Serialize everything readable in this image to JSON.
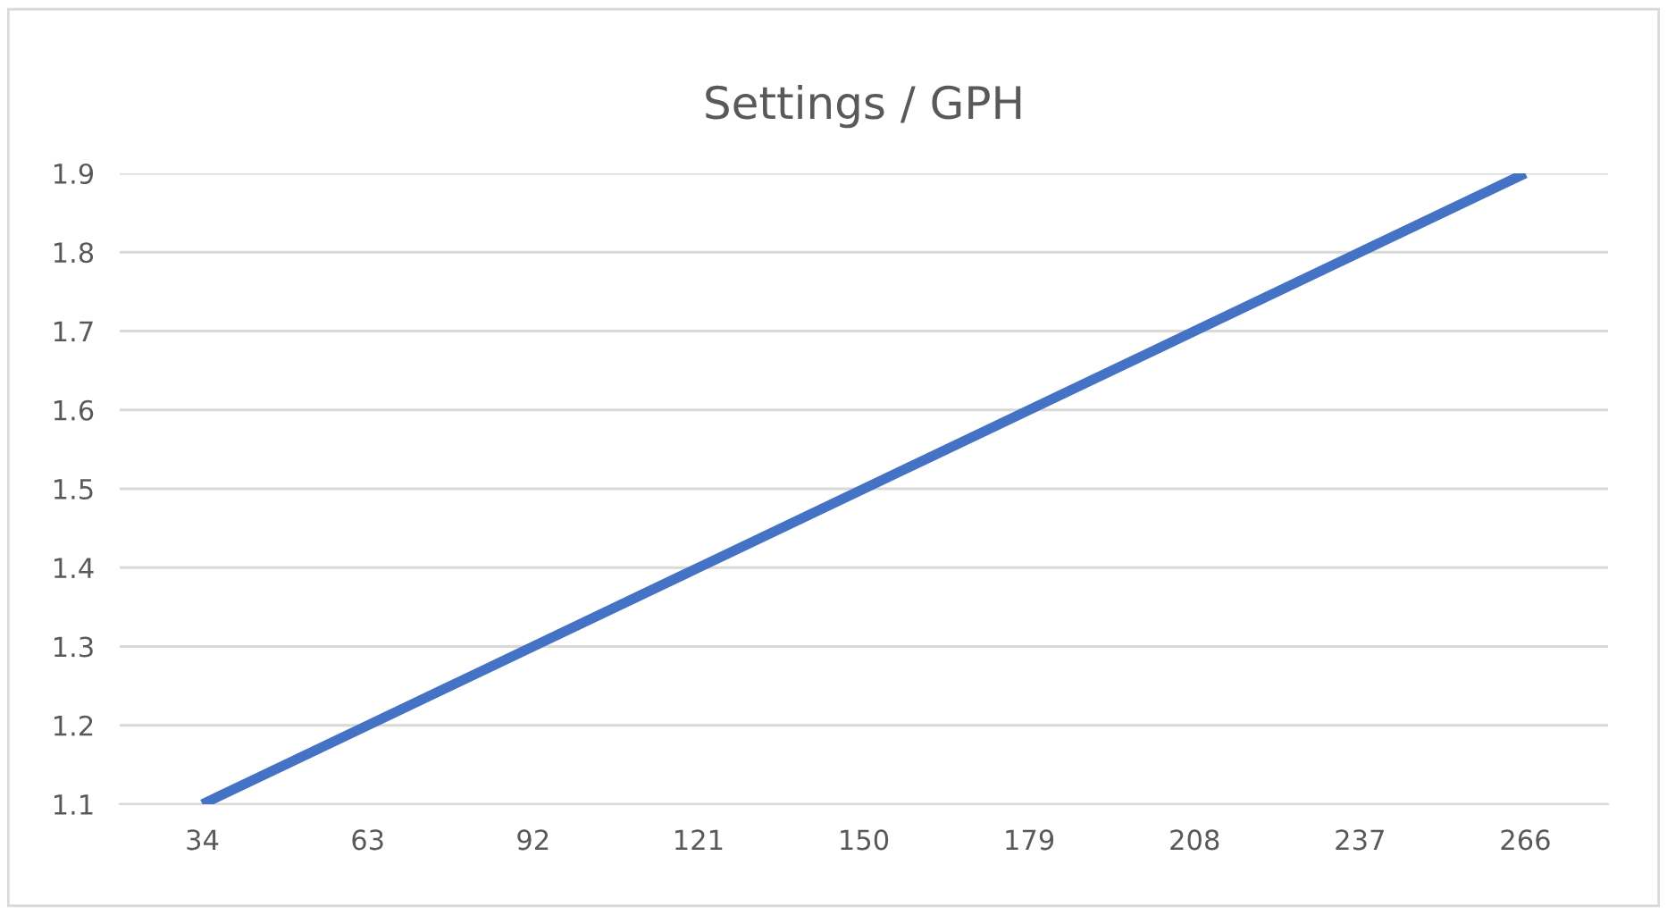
{
  "chart_data": {
    "type": "line",
    "title": "Settings / GPH",
    "categories": [
      "34",
      "63",
      "92",
      "121",
      "150",
      "179",
      "208",
      "237",
      "266"
    ],
    "series": [
      {
        "color": "#4472c4",
        "values": [
          1.1,
          1.2,
          1.3,
          1.4,
          1.5,
          1.6,
          1.7,
          1.8,
          1.9
        ]
      }
    ],
    "ylim": [
      1.1,
      1.9
    ],
    "yticks": [
      1.1,
      1.2,
      1.3,
      1.4,
      1.5,
      1.6,
      1.7,
      1.8,
      1.9
    ],
    "grid": "y",
    "marker": "none",
    "line_style": "solid"
  }
}
